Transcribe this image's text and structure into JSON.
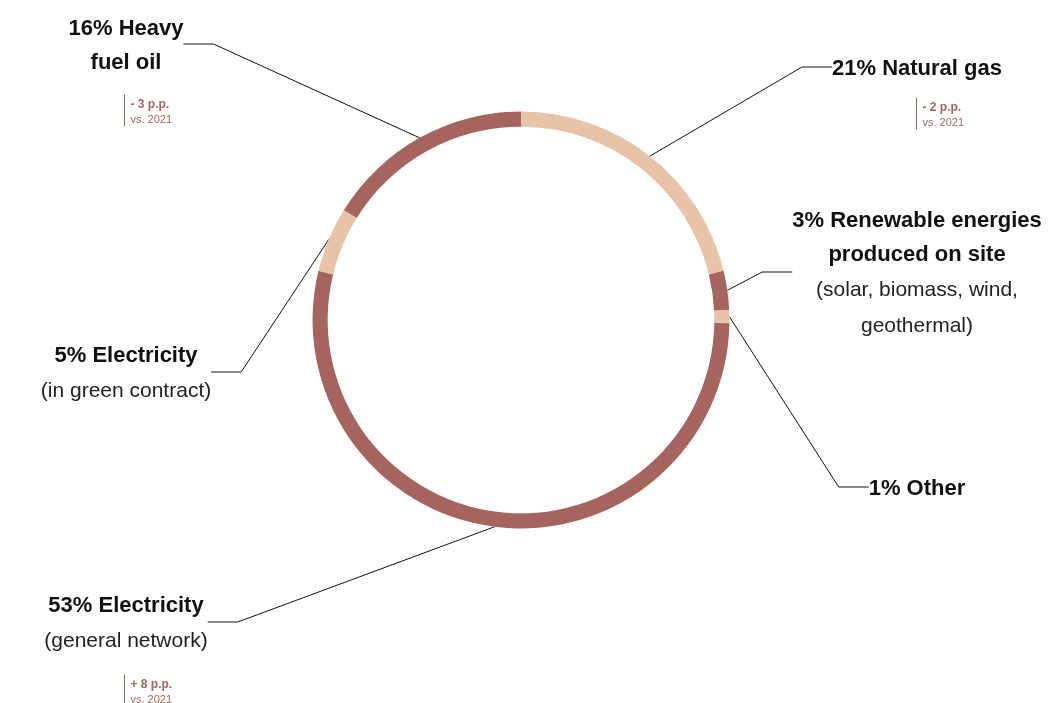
{
  "chart_data": {
    "type": "donut",
    "categories": [
      "Natural gas",
      "Renewable energies produced on site (solar, biomass, wind, geothermal)",
      "Other",
      "Electricity (general network)",
      "Electricity (in green contract)",
      "Heavy fuel oil"
    ],
    "values": [
      21,
      3,
      1,
      53,
      5,
      16
    ],
    "value_labels": [
      "21%",
      "3%",
      "1%",
      "53%",
      "5%",
      "16%"
    ],
    "colors": [
      "#e9c3a8",
      "#a5645e",
      "#e9c3a8",
      "#a5645e",
      "#e9c3a8",
      "#a5645e"
    ],
    "annotations": [
      "- 3 p.p.\nvs. 2021",
      "- 2 p.p.\nvs. 2021",
      "+ 8 p.p.\nvs. 2021"
    ]
  }
}
